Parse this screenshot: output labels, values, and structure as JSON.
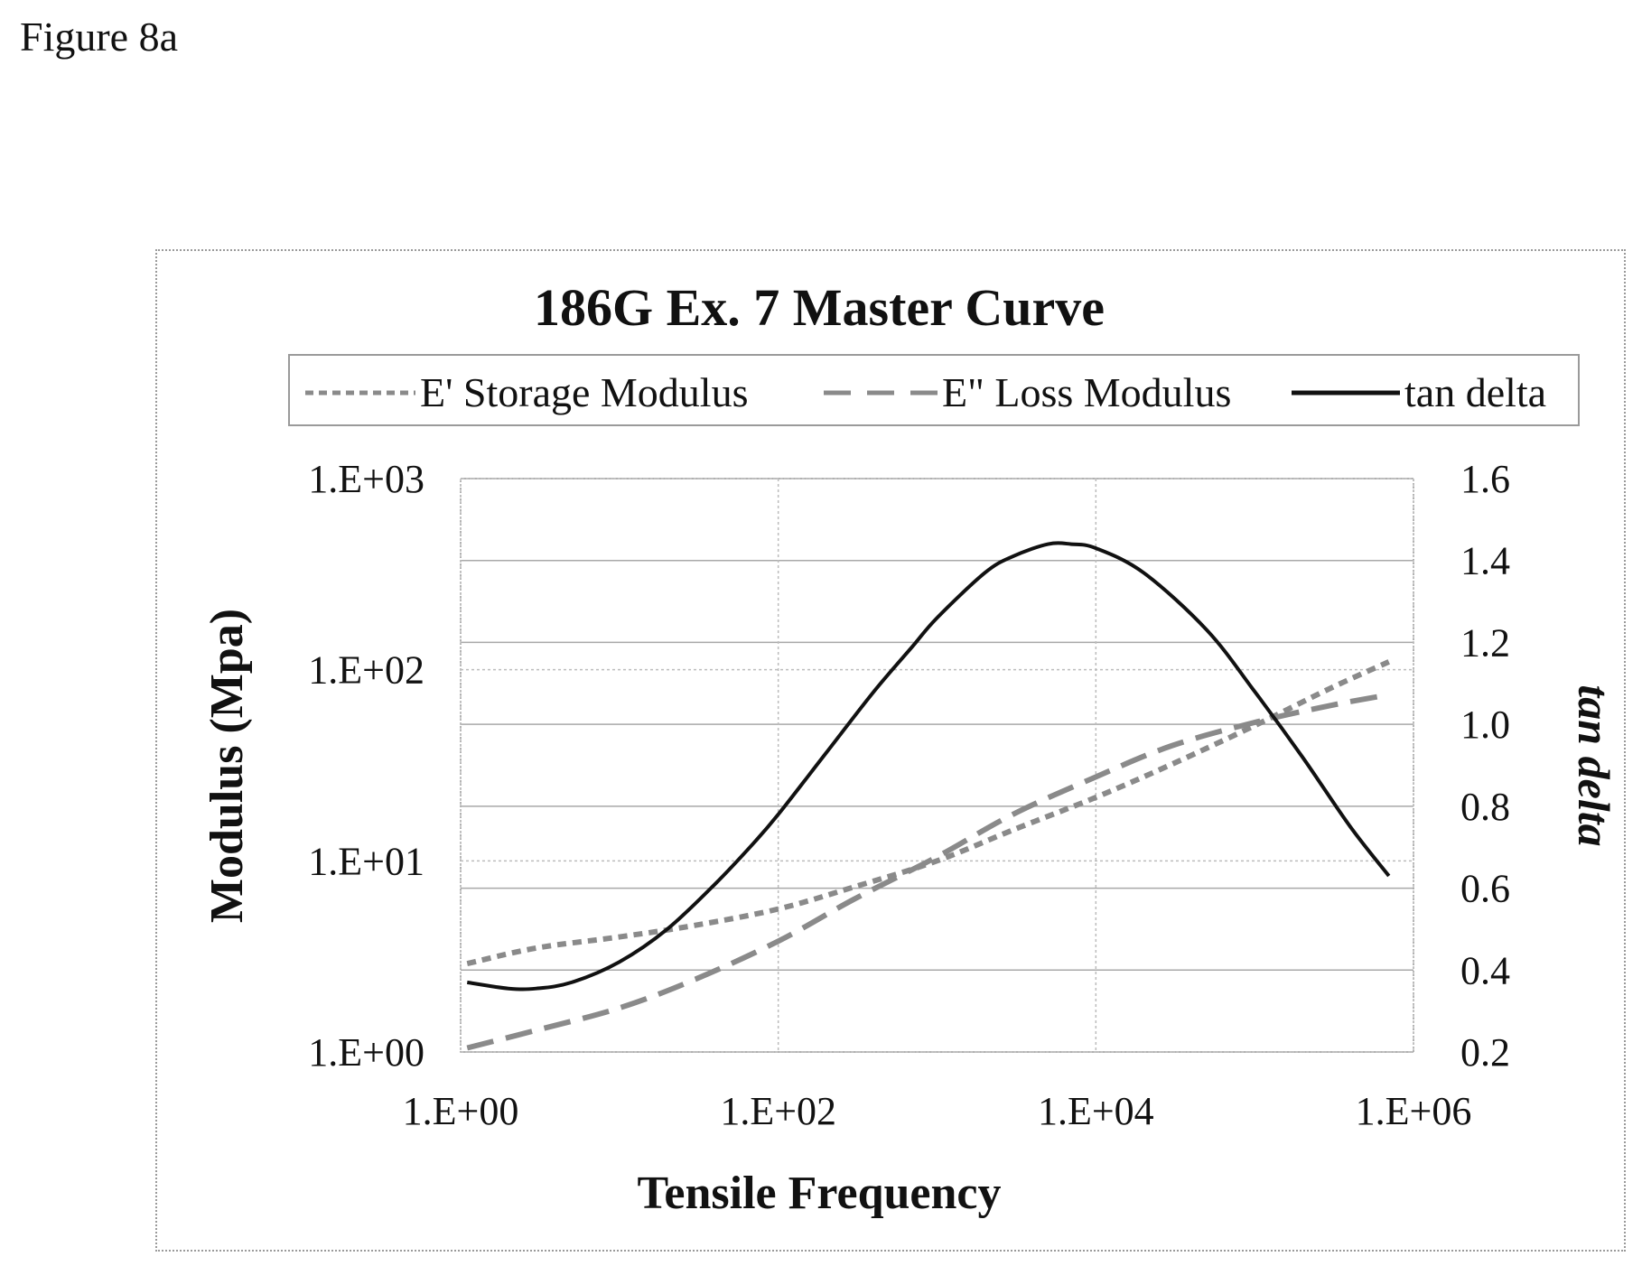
{
  "figure_label": "Figure 8a",
  "chart_data": {
    "type": "line",
    "title": "186G Ex. 7 Master Curve",
    "xlabel": "Tensile Frequency",
    "ylabel": "Modulus (Mpa)",
    "y2label": "tan delta",
    "x_scale": "log",
    "y_scale": "log",
    "xlim": [
      1,
      1000000
    ],
    "ylim": [
      1,
      1000
    ],
    "y2lim": [
      0.2,
      1.6
    ],
    "x_ticks": [
      "1.E+00",
      "1.E+02",
      "1.E+04",
      "1.E+06"
    ],
    "y_ticks": [
      "1.E+00",
      "1.E+01",
      "1.E+02",
      "1.E+03"
    ],
    "y2_ticks": [
      "0.2",
      "0.4",
      "0.6",
      "0.8",
      "1.0",
      "1.2",
      "1.4",
      "1.6"
    ],
    "grid": true,
    "legend_position": "top",
    "series": [
      {
        "name": "E' Storage Modulus",
        "style": "short-dash",
        "axis": "left",
        "color": "#8a8a8a",
        "x": [
          1.1,
          3,
          10,
          30,
          100,
          300,
          1000,
          3000,
          10000,
          30000,
          100000,
          300000,
          700000
        ],
        "y": [
          2.9,
          3.5,
          4.0,
          4.6,
          5.6,
          7.3,
          10.0,
          14.5,
          21.5,
          32.0,
          51.0,
          80.0,
          110.0
        ]
      },
      {
        "name": "E\" Loss Modulus",
        "style": "long-dash",
        "axis": "left",
        "color": "#8a8a8a",
        "x": [
          1.1,
          3,
          10,
          30,
          100,
          300,
          1000,
          3000,
          10000,
          30000,
          100000,
          300000,
          700000
        ],
        "y": [
          1.05,
          1.3,
          1.7,
          2.4,
          3.8,
          6.3,
          10.5,
          17.5,
          27.5,
          40.0,
          53.0,
          65.0,
          74.0
        ]
      },
      {
        "name": "tan delta",
        "style": "solid",
        "axis": "right",
        "color": "#111111",
        "x": [
          1.1,
          2,
          3,
          5,
          10,
          20,
          40,
          70,
          100,
          200,
          400,
          700,
          1000,
          2000,
          3000,
          5000,
          7000,
          10000,
          20000,
          50000,
          100000,
          200000,
          400000,
          700000
        ],
        "y": [
          0.37,
          0.355,
          0.355,
          0.37,
          0.42,
          0.5,
          0.61,
          0.71,
          0.78,
          0.93,
          1.08,
          1.19,
          1.26,
          1.37,
          1.41,
          1.44,
          1.44,
          1.43,
          1.37,
          1.23,
          1.08,
          0.92,
          0.75,
          0.63
        ]
      }
    ]
  }
}
